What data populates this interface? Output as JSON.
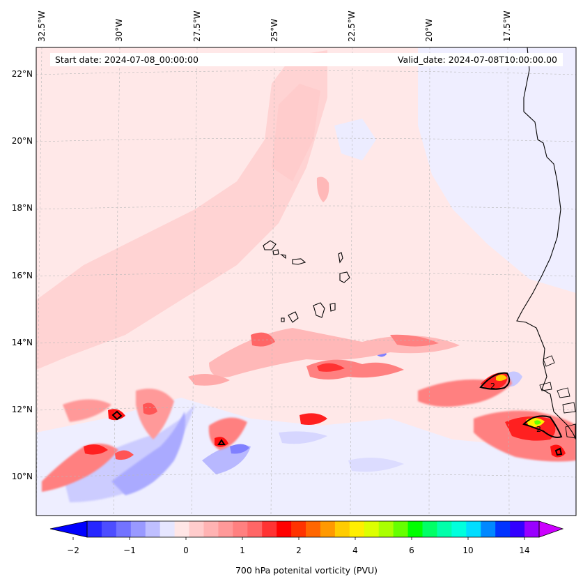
{
  "figure": {
    "start_date": "Start date: 2024-07-08_00:00:00",
    "valid_date": "Valid_date: 2024-07-08T10:00:00.00",
    "colorbar_label": "700 hPa potenital vorticity (PVU)"
  },
  "axes": {
    "lat_labels": [
      "22°N",
      "20°N",
      "18°N",
      "16°N",
      "14°N",
      "12°N",
      "10°N"
    ],
    "lon_labels": [
      "32.5°W",
      "30°W",
      "27.5°W",
      "25°W",
      "22.5°W",
      "20°W",
      "17.5°W"
    ]
  },
  "colorbar": {
    "ticks": [
      "−2",
      "−1",
      "0",
      "1",
      "2",
      "4",
      "6",
      "10",
      "14"
    ],
    "colors": [
      "#0000ff",
      "#2727ff",
      "#4d4dff",
      "#7373ff",
      "#9999ff",
      "#bfbfff",
      "#e6e6ff",
      "#ffe6e6",
      "#ffcccc",
      "#ffb3b3",
      "#ff9999",
      "#ff8080",
      "#ff6666",
      "#ff3333",
      "#ff0000",
      "#ff3300",
      "#ff6600",
      "#ff9900",
      "#ffcc00",
      "#ffee00",
      "#ddff00",
      "#aaff00",
      "#66ff00",
      "#00ff00",
      "#00ff66",
      "#00ffaa",
      "#00ffdd",
      "#00ddff",
      "#0088ff",
      "#0033ff",
      "#3300ff",
      "#9900ff",
      "#cc00ff"
    ]
  },
  "map_annotations": {
    "contour_labels": [
      "2",
      "2"
    ]
  }
}
